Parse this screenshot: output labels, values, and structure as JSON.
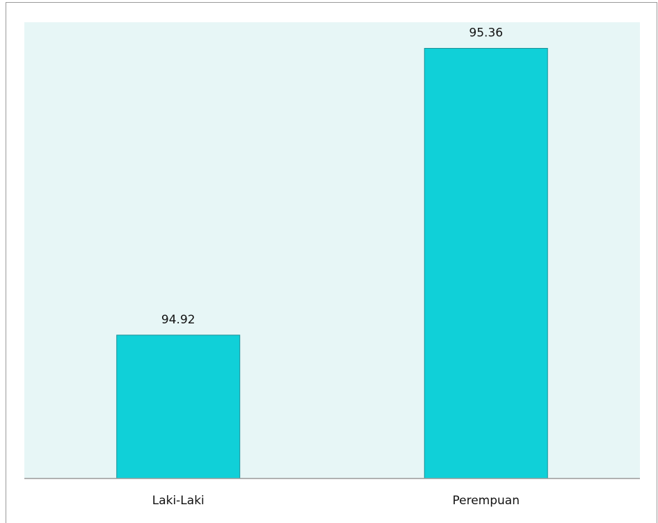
{
  "chart_data": {
    "type": "bar",
    "categories": [
      "Laki-Laki",
      "Perempuan"
    ],
    "values": [
      94.92,
      95.36
    ],
    "color": "#10d0d8",
    "ylim": [
      94.7,
      95.4
    ]
  }
}
